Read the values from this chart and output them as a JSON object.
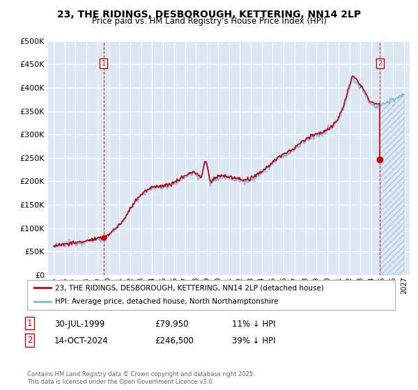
{
  "title": "23, THE RIDINGS, DESBOROUGH, KETTERING, NN14 2LP",
  "subtitle": "Price paid vs. HM Land Registry's House Price Index (HPI)",
  "legend_line1": "23, THE RIDINGS, DESBOROUGH, KETTERING, NN14 2LP (detached house)",
  "legend_line2": "HPI: Average price, detached house, North Northamptonshire",
  "annotation1_date": "30-JUL-1999",
  "annotation1_price": "£79,950",
  "annotation1_hpi": "11% ↓ HPI",
  "annotation2_date": "14-OCT-2024",
  "annotation2_price": "£246,500",
  "annotation2_hpi": "39% ↓ HPI",
  "footer": "Contains HM Land Registry data © Crown copyright and database right 2025.\nThis data is licensed under the Open Government Licence v3.0.",
  "bg_color": "#dce9f5",
  "hpi_color": "#7ab8e8",
  "price_color": "#cc0000",
  "grid_color": "#ffffff",
  "ylim": [
    0,
    500000
  ],
  "yticks": [
    0,
    50000,
    100000,
    150000,
    200000,
    250000,
    300000,
    350000,
    400000,
    450000,
    500000
  ],
  "sale1_year": 1999.57,
  "sale1_price": 79950,
  "sale2_year": 2024.79,
  "sale2_price": 246500,
  "xmin": 1994.5,
  "xmax": 2027.5,
  "hatch_start": 2024.79
}
